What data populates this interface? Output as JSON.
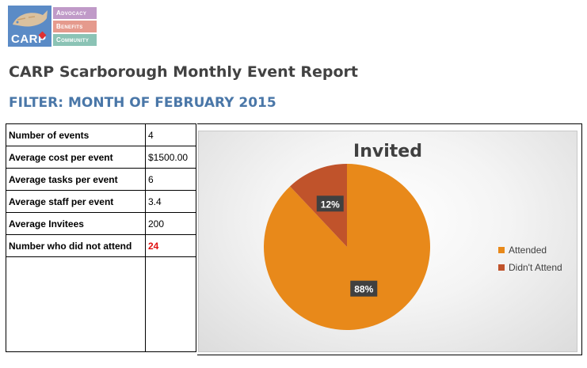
{
  "logo": {
    "mark": "CARP",
    "taglines": [
      "Advocacy",
      "Benefits",
      "Community"
    ]
  },
  "report": {
    "title": "CARP Scarborough Monthly Event Report",
    "filter": "FILTER: MONTH OF FEBRUARY 2015"
  },
  "stats": [
    {
      "label": "Number of events",
      "value": "4"
    },
    {
      "label": "Average cost per event",
      "value": "$1500.00"
    },
    {
      "label": "Average tasks per event",
      "value": "6"
    },
    {
      "label": "Average staff per event",
      "value": "3.4"
    },
    {
      "label": "Average Invitees",
      "value": "200"
    },
    {
      "label": "Number who did not attend",
      "value": "24"
    }
  ],
  "colors": {
    "attended": "#e8891a",
    "didnt_attend": "#c0532b",
    "highlight": "#e01010"
  },
  "chart_data": {
    "type": "pie",
    "title": "Invited",
    "categories": [
      "Attended",
      "Didn't Attend"
    ],
    "values": [
      88,
      12
    ],
    "data_labels": [
      "88%",
      "12%"
    ],
    "legend": "right"
  }
}
